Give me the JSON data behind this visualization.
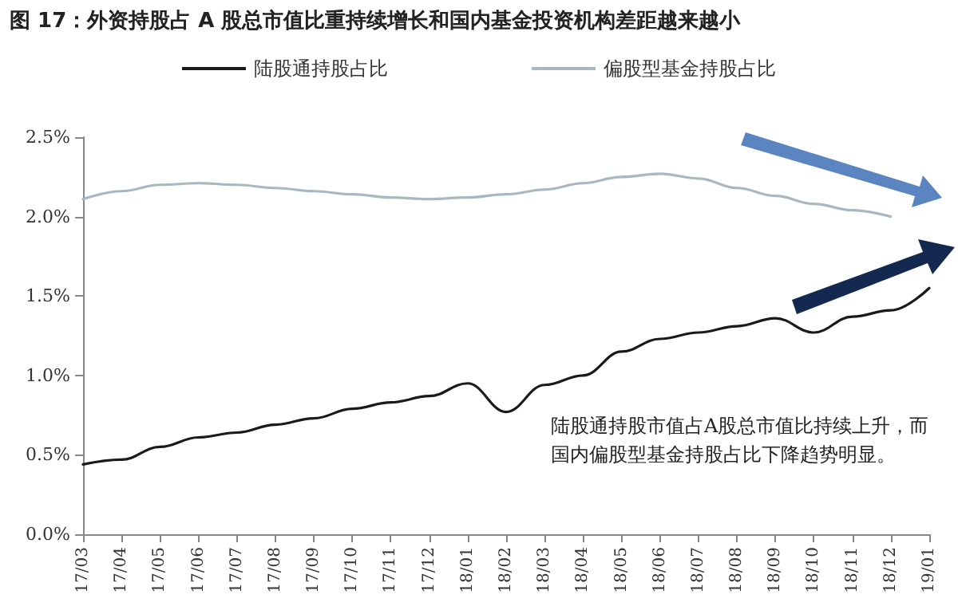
{
  "chart_data": {
    "type": "line",
    "title": "图 17：外资持股占 A 股总市值比重持续增长和国内基金投资机构差距越来越小",
    "categories": [
      "17/03",
      "17/04",
      "17/05",
      "17/06",
      "17/07",
      "17/08",
      "17/09",
      "17/10",
      "17/11",
      "17/12",
      "18/01",
      "18/02",
      "18/03",
      "18/04",
      "18/05",
      "18/06",
      "18/07",
      "18/08",
      "18/09",
      "18/10",
      "18/11",
      "18/12",
      "19/01"
    ],
    "series": [
      {
        "name": "陆股通持股占比",
        "color": "#1a1a1a",
        "values": [
          0.44,
          0.47,
          0.55,
          0.61,
          0.64,
          0.69,
          0.73,
          0.79,
          0.83,
          0.87,
          0.95,
          0.77,
          0.94,
          1.0,
          1.15,
          1.23,
          1.27,
          1.31,
          1.36,
          1.27,
          1.37,
          1.41,
          1.55
        ]
      },
      {
        "name": "偏股型基金持股占比",
        "color": "#a9b8c0",
        "values": [
          2.11,
          2.16,
          2.2,
          2.21,
          2.2,
          2.18,
          2.16,
          2.14,
          2.12,
          2.11,
          2.12,
          2.14,
          2.17,
          2.21,
          2.25,
          2.27,
          2.24,
          2.18,
          2.13,
          2.08,
          2.04,
          2.0,
          null
        ]
      }
    ],
    "ylim": [
      0,
      2.5
    ],
    "yticks": [
      {
        "value": 0,
        "label": "0.0%"
      },
      {
        "value": 0.5,
        "label": "0.5%"
      },
      {
        "value": 1,
        "label": "1.0%"
      },
      {
        "value": 1.5,
        "label": "1.5%"
      },
      {
        "value": 2,
        "label": "2.0%"
      },
      {
        "value": 2.5,
        "label": "2.5%"
      }
    ],
    "annotations": [
      "陆股通持股市值占A股总市值比持续上升，而国内偏股型基金持股占比下降趋势明显。"
    ],
    "legend": "top",
    "grid": false,
    "marker": "none",
    "line_style": "solid"
  }
}
